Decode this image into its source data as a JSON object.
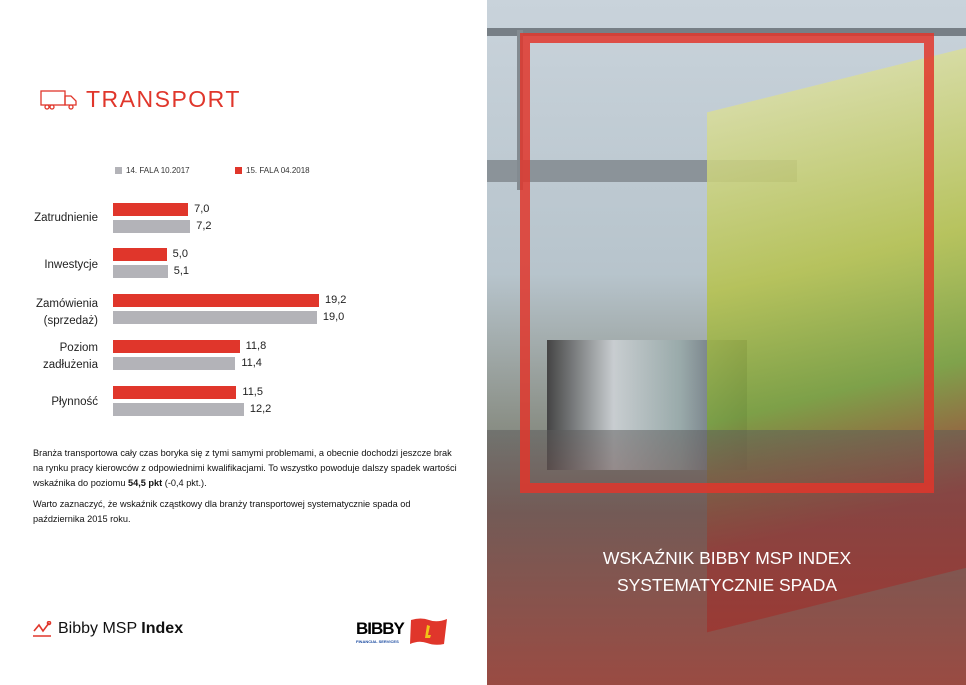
{
  "section": {
    "title": "TRANSPORT",
    "icon": "truck-icon"
  },
  "chart_data": {
    "type": "bar",
    "orientation": "horizontal",
    "categories": [
      "Zatrudnienie",
      "Inwestycje",
      "Zamówienia (sprzedaż)",
      "Poziom zadłużenia",
      "Płynność"
    ],
    "series": [
      {
        "name": "15. FALA 04.2018",
        "color": "#e0362b",
        "values": [
          7.0,
          5.0,
          19.2,
          11.8,
          11.5
        ],
        "labels": [
          "7,0",
          "5,0",
          "19,2",
          "11,8",
          "11,5"
        ]
      },
      {
        "name": "14. FALA 10.2017",
        "color": "#b3b3b8",
        "values": [
          7.2,
          5.1,
          19.0,
          11.4,
          12.2
        ],
        "labels": [
          "7,2",
          "5,1",
          "19,0",
          "11,4",
          "12,2"
        ]
      }
    ],
    "legend": "top"
  },
  "chart_labels": {
    "cat0": "Zatrudnienie",
    "cat1": "Inwestycje",
    "cat2a": "Zamówienia",
    "cat2b": "(sprzedaż)",
    "cat3a": "Poziom",
    "cat3b": "zadłużenia",
    "cat4": "Płynność"
  },
  "text": {
    "p1a": "Branża transportowa cały czas boryka się z tymi samymi problemami, a obecnie dochodzi jeszcze brak na rynku pracy kierowców z odpowiednimi kwalifikacjami. To wszystko powoduje dalszy spadek wartości wskaźnika do poziomu ",
    "p1b": "54,5 pkt",
    "p1c": " (-0,4 pkt.).",
    "p2": "Warto zaznaczyć, że wskaźnik cząstkowy dla branży transportowej systematycznie spada od października 2015 roku."
  },
  "footer": {
    "brand_light": "Bibby ",
    "brand_mid": "MSP ",
    "brand_bold": "Index",
    "partner": "BIBBY",
    "partner_sub": "FINANCIAL SERVICES"
  },
  "photo": {
    "headline1": "WSKAŹNIK BIBBY MSP INDEX",
    "headline2": "SYSTEMATYCZNIE SPADA",
    "accent": "#e0362b"
  }
}
